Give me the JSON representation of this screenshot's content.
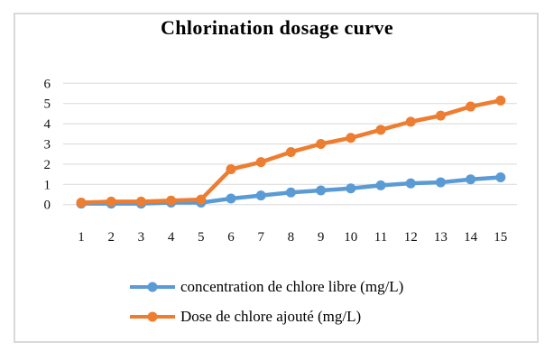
{
  "frame": {
    "border_color": "#D9D9D9",
    "background": "#ffffff"
  },
  "chart_data": {
    "type": "line",
    "title": "Chlorination dosage curve",
    "categories": [
      "1",
      "2",
      "3",
      "4",
      "5",
      "6",
      "7",
      "8",
      "9",
      "10",
      "11",
      "12",
      "13",
      "14",
      "15"
    ],
    "series": [
      {
        "name": "concentration de chlore libre (mg/L)",
        "color": "#5B9BD5",
        "values": [
          0.05,
          0.05,
          0.05,
          0.1,
          0.1,
          0.3,
          0.45,
          0.6,
          0.7,
          0.8,
          0.95,
          1.05,
          1.1,
          1.25,
          1.35
        ]
      },
      {
        "name": "Dose de chlore ajouté (mg/L)",
        "color": "#ED7D31",
        "values": [
          0.1,
          0.15,
          0.15,
          0.2,
          0.25,
          1.75,
          2.1,
          2.6,
          3.0,
          3.3,
          3.7,
          4.1,
          4.4,
          4.85,
          5.15
        ]
      }
    ],
    "xlabel": "",
    "ylabel": "",
    "ylim": [
      0,
      6
    ],
    "yticks": [
      0,
      1,
      2,
      3,
      4,
      5,
      6
    ],
    "grid": "horizontal",
    "gridline_color": "#D9D9D9",
    "legend_position": "bottom-left",
    "marker": "circle"
  }
}
